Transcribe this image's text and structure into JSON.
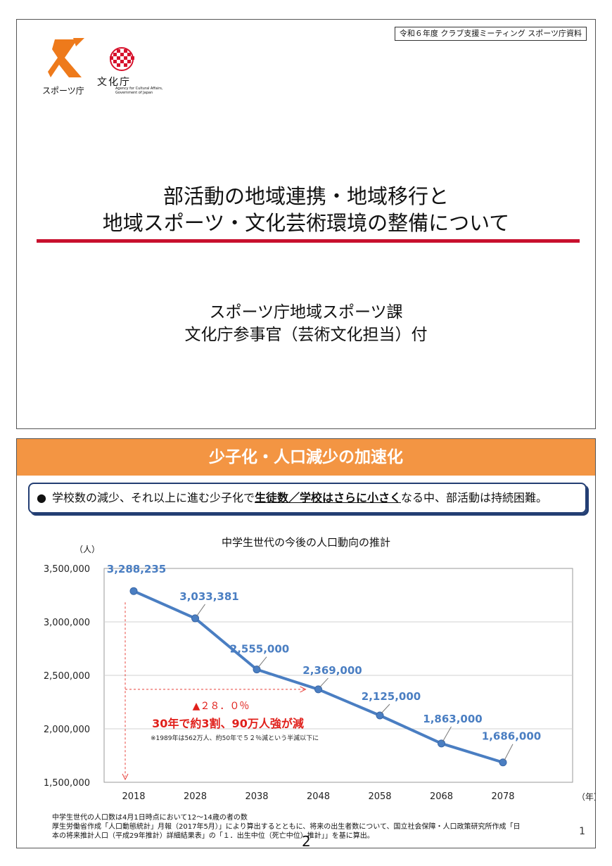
{
  "slide1": {
    "header_tag": "令和６年度 クラブ支援ミーティング スポーツ庁資料",
    "logo_sports_label": "スポーツ庁",
    "logo_bunka_label": "文化庁",
    "logo_bunka_sub1": "Agency for Cultural Affairs,",
    "logo_bunka_sub2": "Government of Japan",
    "title_line1": "部活動の地域連携・地域移行と",
    "title_line2": "地域スポーツ・文化芸術環境の整備について",
    "sub_line1": "スポーツ庁地域スポーツ課",
    "sub_line2": "文化庁参事官（芸術文化担当）付",
    "colors": {
      "rule": "#c8102e",
      "logo_orange": "#ee7a1b",
      "logo_red": "#d7122c"
    }
  },
  "slide2": {
    "banner": "少子化・人口減少の加速化",
    "bullet": {
      "dot": "●",
      "text_a": "学校数の減少、それ以上に進む少子化で",
      "text_b": "生徒数／学校はさらに小さく",
      "text_c": "なる中、部活動は持続困難。"
    },
    "chart_title": "中学生世代の今後の人口動向の推計",
    "annotation_pct": "▲２８．０％",
    "annotation_main": "30年で約3割、90万人強が減",
    "annotation_note": "※1989年は562万人、約50年で５２％減という半減以下に",
    "notes_line1": "中学生世代の人口数は4月1日時点において12～14歳の者の数",
    "notes_line2": "厚生労働省作成「人口動態統計」月報（2017年5月）」により算出するとともに、将来の出生者数について、国立社会保障・人口政策研究所作成「日",
    "notes_line3": "本の将来推計人口（平成29年推計）詳細結果表」の「１．出生中位（死亡中位）推計」」を基に算出。",
    "page_number": "1",
    "sheet_number": "2",
    "colors": {
      "banner": "#f39543",
      "line": "#4a7ec2",
      "label": "#4a7ec2",
      "alert": "#e0201b",
      "box": "#233e73"
    }
  },
  "chart_data": {
    "type": "line",
    "title": "中学生世代の今後の人口動向の推計",
    "ylabel": "（人）",
    "xlabel": "（年）",
    "x": [
      "2018",
      "2028",
      "2038",
      "2048",
      "2058",
      "2068",
      "2078"
    ],
    "values": [
      3288235,
      3033381,
      2555000,
      2369000,
      2125000,
      1863000,
      1686000
    ],
    "data_labels": [
      "3,288,235",
      "3,033,381",
      "2,555,000",
      "2,369,000",
      "2,125,000",
      "1,863,000",
      "1,686,000"
    ],
    "yticks": [
      "3,500,000",
      "3,000,000",
      "2,500,000",
      "2,000,000",
      "1,500,000"
    ],
    "ylim": [
      1500000,
      3500000
    ],
    "grid": true
  }
}
